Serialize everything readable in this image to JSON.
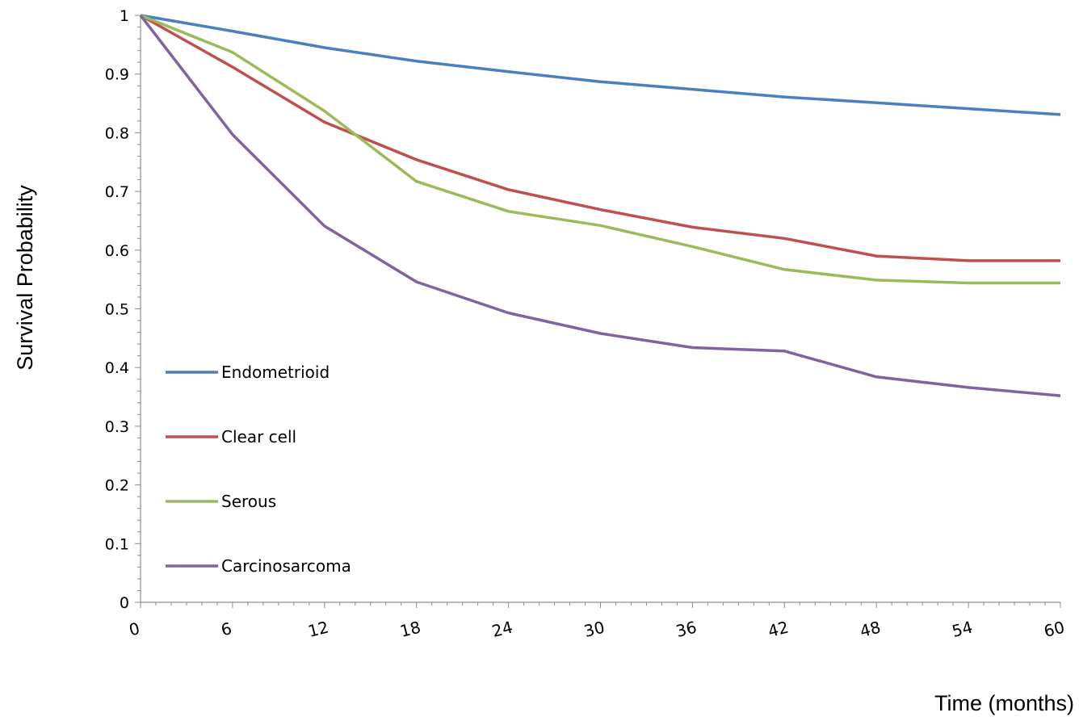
{
  "chart_data": {
    "type": "line",
    "title": "",
    "xlabel": "Time (months)",
    "ylabel": "Survival Probability",
    "x": [
      0,
      6,
      12,
      18,
      24,
      30,
      36,
      42,
      48,
      54,
      60
    ],
    "xlim": [
      0,
      60
    ],
    "ylim": [
      0,
      1
    ],
    "x_ticks": [
      "0",
      "6",
      "12",
      "18",
      "24",
      "30",
      "36",
      "42",
      "48",
      "54",
      "60"
    ],
    "y_ticks": [
      "0",
      "0.1",
      "0.2",
      "0.3",
      "0.4",
      "0.5",
      "0.6",
      "0.7",
      "0.8",
      "0.9",
      "1"
    ],
    "grid": false,
    "legend_position": "left",
    "series": [
      {
        "name": "Endometrioid",
        "color": "#4a7fc1",
        "values": [
          1.0,
          0.973,
          0.945,
          0.922,
          0.904,
          0.887,
          0.874,
          0.861,
          0.851,
          0.841,
          0.831
        ]
      },
      {
        "name": "Clear cell",
        "color": "#c0504d",
        "values": [
          1.0,
          0.912,
          0.818,
          0.754,
          0.703,
          0.669,
          0.639,
          0.62,
          0.59,
          0.582,
          0.582
        ]
      },
      {
        "name": "Serous",
        "color": "#9bbb59",
        "values": [
          1.0,
          0.937,
          0.837,
          0.717,
          0.666,
          0.642,
          0.606,
          0.567,
          0.549,
          0.544,
          0.544
        ]
      },
      {
        "name": "Carcinosarcoma",
        "color": "#8064a2",
        "values": [
          1.0,
          0.797,
          0.641,
          0.546,
          0.493,
          0.458,
          0.434,
          0.428,
          0.384,
          0.366,
          0.352
        ]
      }
    ]
  }
}
